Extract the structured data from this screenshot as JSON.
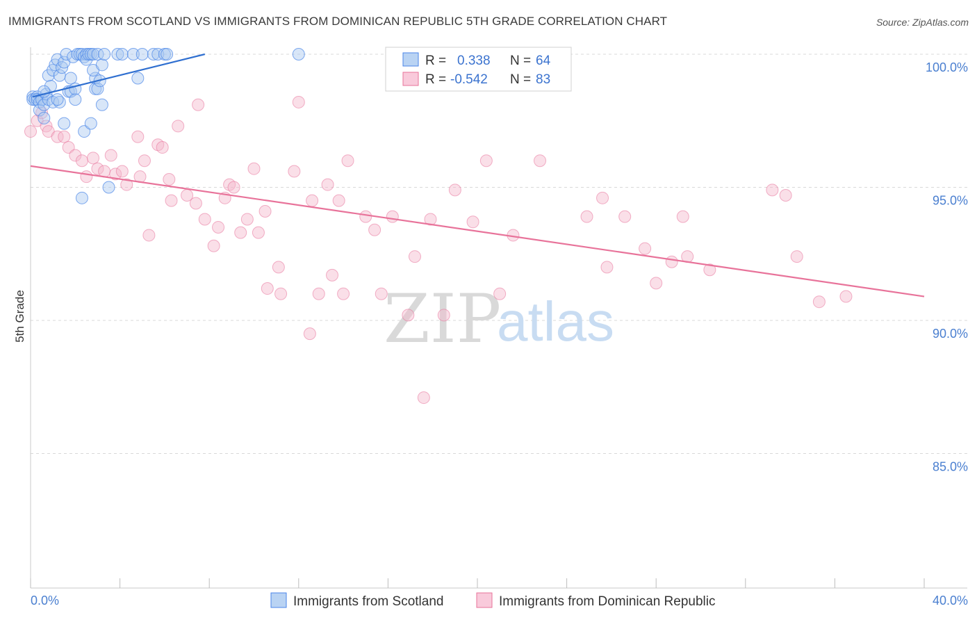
{
  "title": "IMMIGRANTS FROM SCOTLAND VS IMMIGRANTS FROM DOMINICAN REPUBLIC 5TH GRADE CORRELATION CHART",
  "source": "Source: ZipAtlas.com",
  "watermark": {
    "zip": "ZIP",
    "atlas": "atlas"
  },
  "colors": {
    "scotland": "#4a86e8",
    "scotland_fill": "#a8c8f0",
    "dominican": "#e8739a",
    "dominican_fill": "#f5b8cc",
    "tick_text": "#4a7fd0",
    "grid": "#d8d8d8"
  },
  "legend": {
    "rows": [
      {
        "r_label": "R =",
        "r_value": "0.338",
        "n_label": "N =",
        "n_value": "64"
      },
      {
        "r_label": "R =",
        "r_value": "-0.542",
        "n_label": "N =",
        "n_value": "83"
      }
    ]
  },
  "bottom_legend": [
    "Immigrants from Scotland",
    "Immigrants from Dominican Republic"
  ],
  "chart_data": {
    "type": "scatter",
    "title": "IMMIGRANTS FROM SCOTLAND VS IMMIGRANTS FROM DOMINICAN REPUBLIC 5TH GRADE CORRELATION CHART",
    "xlabel": "",
    "ylabel": "5th Grade",
    "xlim": [
      0,
      40
    ],
    "ylim": [
      80.5,
      100.5
    ],
    "x_ticks_labeled": [
      "0.0%",
      "40.0%"
    ],
    "y_ticks": [
      100,
      95,
      90,
      85
    ],
    "y_tick_labels": [
      "100.0%",
      "95.0%",
      "90.0%",
      "85.0%"
    ],
    "grid": "horizontal dashed",
    "legend_position": "top-center",
    "series": [
      {
        "name": "Immigrants from Scotland",
        "R": 0.338,
        "N": 64,
        "trend": {
          "x": [
            0.1,
            7.8
          ],
          "y": [
            98.4,
            100.0
          ]
        },
        "points": [
          [
            0.1,
            98.4
          ],
          [
            0.1,
            98.3
          ],
          [
            0.2,
            98.3
          ],
          [
            0.3,
            98.4
          ],
          [
            0.3,
            98.3
          ],
          [
            0.4,
            98.2
          ],
          [
            0.4,
            97.9
          ],
          [
            0.5,
            98.3
          ],
          [
            0.6,
            98.1
          ],
          [
            0.6,
            97.6
          ],
          [
            0.7,
            98.5
          ],
          [
            0.8,
            98.3
          ],
          [
            0.8,
            99.2
          ],
          [
            0.9,
            98.8
          ],
          [
            1.0,
            99.4
          ],
          [
            1.0,
            98.2
          ],
          [
            1.1,
            99.6
          ],
          [
            1.2,
            99.8
          ],
          [
            1.3,
            99.2
          ],
          [
            1.3,
            98.2
          ],
          [
            1.4,
            99.5
          ],
          [
            1.5,
            97.4
          ],
          [
            1.5,
            99.7
          ],
          [
            1.6,
            100.0
          ],
          [
            1.7,
            98.6
          ],
          [
            1.8,
            98.6
          ],
          [
            1.8,
            99.1
          ],
          [
            1.9,
            99.9
          ],
          [
            2.0,
            98.3
          ],
          [
            2.0,
            98.7
          ],
          [
            2.1,
            100.0
          ],
          [
            2.2,
            100.0
          ],
          [
            2.3,
            100.0
          ],
          [
            2.4,
            99.9
          ],
          [
            2.4,
            97.1
          ],
          [
            2.5,
            100.0
          ],
          [
            2.5,
            99.8
          ],
          [
            2.6,
            100.0
          ],
          [
            2.7,
            100.0
          ],
          [
            2.7,
            97.4
          ],
          [
            2.8,
            100.0
          ],
          [
            2.9,
            99.1
          ],
          [
            2.8,
            99.4
          ],
          [
            2.9,
            98.7
          ],
          [
            3.0,
            98.7
          ],
          [
            3.0,
            100.0
          ],
          [
            3.2,
            99.6
          ],
          [
            3.2,
            98.1
          ],
          [
            3.3,
            100.0
          ],
          [
            3.5,
            95.0
          ],
          [
            3.9,
            100.0
          ],
          [
            4.1,
            100.0
          ],
          [
            4.6,
            100.0
          ],
          [
            5.0,
            100.0
          ],
          [
            5.5,
            100.0
          ],
          [
            5.7,
            100.0
          ],
          [
            6.0,
            100.0
          ],
          [
            6.1,
            100.0
          ],
          [
            12.0,
            100.0
          ],
          [
            4.8,
            99.1
          ],
          [
            2.3,
            94.6
          ],
          [
            0.6,
            98.6
          ],
          [
            1.2,
            98.3
          ],
          [
            3.1,
            99.0
          ]
        ]
      },
      {
        "name": "Immigrants from Dominican Republic",
        "R": -0.542,
        "N": 83,
        "trend": {
          "x": [
            0.0,
            40.0
          ],
          "y": [
            95.8,
            90.9
          ]
        },
        "points": [
          [
            0.0,
            97.1
          ],
          [
            0.3,
            97.5
          ],
          [
            0.5,
            97.8
          ],
          [
            0.7,
            97.3
          ],
          [
            0.8,
            97.1
          ],
          [
            1.2,
            96.9
          ],
          [
            1.5,
            96.9
          ],
          [
            1.7,
            96.5
          ],
          [
            2.0,
            96.2
          ],
          [
            2.3,
            96.0
          ],
          [
            2.5,
            95.4
          ],
          [
            2.8,
            96.1
          ],
          [
            3.0,
            95.7
          ],
          [
            3.3,
            95.6
          ],
          [
            3.6,
            96.2
          ],
          [
            3.8,
            95.5
          ],
          [
            4.1,
            95.6
          ],
          [
            4.3,
            95.1
          ],
          [
            4.8,
            96.9
          ],
          [
            4.9,
            95.4
          ],
          [
            5.1,
            96.0
          ],
          [
            5.3,
            93.2
          ],
          [
            5.7,
            96.6
          ],
          [
            5.9,
            96.5
          ],
          [
            6.2,
            95.3
          ],
          [
            6.3,
            94.5
          ],
          [
            6.6,
            97.3
          ],
          [
            7.0,
            94.7
          ],
          [
            7.4,
            94.4
          ],
          [
            7.5,
            98.1
          ],
          [
            7.8,
            93.8
          ],
          [
            8.2,
            92.8
          ],
          [
            8.4,
            93.5
          ],
          [
            8.7,
            94.6
          ],
          [
            8.9,
            95.1
          ],
          [
            9.1,
            95.0
          ],
          [
            9.4,
            93.3
          ],
          [
            9.7,
            93.8
          ],
          [
            10.0,
            95.7
          ],
          [
            10.2,
            93.3
          ],
          [
            10.5,
            94.1
          ],
          [
            10.6,
            91.2
          ],
          [
            11.1,
            92.0
          ],
          [
            11.2,
            91.0
          ],
          [
            11.8,
            95.6
          ],
          [
            12.0,
            98.2
          ],
          [
            12.5,
            89.5
          ],
          [
            12.6,
            94.5
          ],
          [
            12.9,
            91.0
          ],
          [
            13.3,
            95.1
          ],
          [
            13.5,
            91.7
          ],
          [
            13.8,
            94.5
          ],
          [
            14.0,
            91.0
          ],
          [
            14.2,
            96.0
          ],
          [
            15.0,
            93.9
          ],
          [
            15.4,
            93.4
          ],
          [
            15.7,
            91.0
          ],
          [
            16.2,
            93.9
          ],
          [
            16.9,
            90.2
          ],
          [
            17.2,
            92.4
          ],
          [
            17.6,
            87.1
          ],
          [
            17.9,
            93.8
          ],
          [
            18.5,
            90.2
          ],
          [
            19.0,
            94.9
          ],
          [
            19.8,
            93.7
          ],
          [
            20.4,
            96.0
          ],
          [
            21.0,
            91.0
          ],
          [
            21.6,
            93.2
          ],
          [
            22.8,
            96.0
          ],
          [
            24.9,
            93.9
          ],
          [
            25.6,
            94.6
          ],
          [
            25.8,
            92.0
          ],
          [
            26.6,
            93.9
          ],
          [
            27.5,
            92.7
          ],
          [
            28.0,
            91.4
          ],
          [
            28.7,
            92.2
          ],
          [
            29.2,
            93.9
          ],
          [
            29.4,
            92.4
          ],
          [
            30.4,
            91.9
          ],
          [
            33.2,
            94.9
          ],
          [
            33.8,
            94.7
          ],
          [
            34.3,
            92.4
          ],
          [
            35.3,
            90.7
          ],
          [
            36.5,
            90.9
          ]
        ]
      }
    ]
  }
}
